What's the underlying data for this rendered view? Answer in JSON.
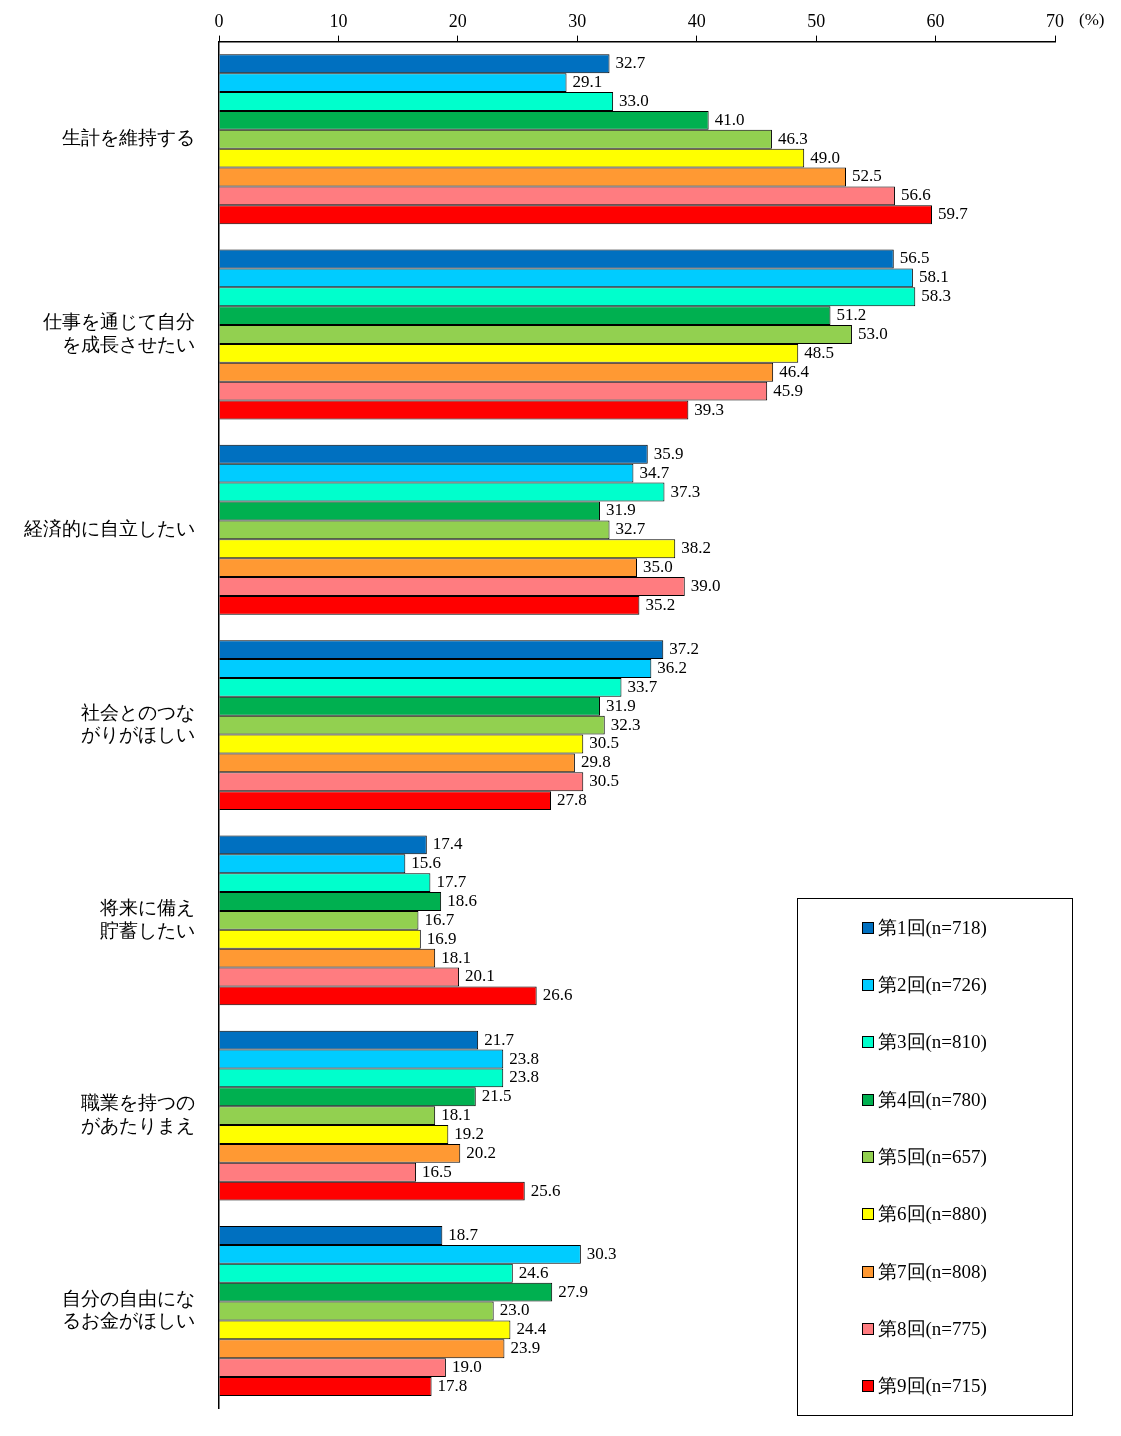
{
  "chart_data": {
    "type": "bar",
    "orientation": "horizontal",
    "xlabel": "(%)",
    "categories": [
      "生計を維持する",
      "仕事を通じて自分を成長させたい",
      "経済的に自立したい",
      "社会とのつながりがほしい",
      "将来に備え貯蓄したい",
      "職業を持つのがあたりまえ",
      "自分の自由になるお金がほしい"
    ],
    "series": [
      {
        "name": "第1回(n=718)",
        "color": "#0070c0",
        "values": [
          32.7,
          56.5,
          35.9,
          37.2,
          17.4,
          21.7,
          18.7
        ],
        "value_labels": [
          "32.7",
          "56.5",
          "35.9",
          "37.2",
          "17.4",
          "21.7",
          "18.7"
        ]
      },
      {
        "name": "第2回(n=726)",
        "color": "#00ccff",
        "values": [
          29.1,
          58.1,
          34.7,
          36.2,
          15.6,
          23.8,
          30.3
        ],
        "value_labels": [
          "29.1",
          "58.1",
          "34.7",
          "36.2",
          "15.6",
          "23.8",
          "30.3"
        ]
      },
      {
        "name": "第3回(n=810)",
        "color": "#00ffcc",
        "values": [
          33.0,
          58.3,
          37.3,
          33.7,
          17.7,
          23.8,
          24.6
        ],
        "value_labels": [
          "33.0",
          "58.3",
          "37.3",
          "33.7",
          "17.7",
          "23.8",
          "24.6"
        ]
      },
      {
        "name": "第4回(n=780)",
        "color": "#00b050",
        "values": [
          41.0,
          51.2,
          31.9,
          31.9,
          18.6,
          21.5,
          27.9
        ],
        "value_labels": [
          "41.0",
          "51.2",
          "31.9",
          "31.9",
          "18.6",
          "21.5",
          "27.9"
        ]
      },
      {
        "name": "第5回(n=657)",
        "color": "#92d050",
        "values": [
          46.3,
          53.0,
          32.7,
          32.3,
          16.7,
          18.1,
          23.0
        ],
        "value_labels": [
          "46.3",
          "53.0",
          "32.7",
          "32.3",
          "16.7",
          "18.1",
          "23.0"
        ]
      },
      {
        "name": "第6回(n=880)",
        "color": "#ffff00",
        "values": [
          49.0,
          48.5,
          38.2,
          30.5,
          16.9,
          19.2,
          24.4
        ],
        "value_labels": [
          "49.0",
          "48.5",
          "38.2",
          "30.5",
          "16.9",
          "19.2",
          "24.4"
        ]
      },
      {
        "name": "第7回(n=808)",
        "color": "#ff9933",
        "values": [
          52.5,
          46.4,
          35.0,
          29.8,
          18.1,
          20.2,
          23.9
        ],
        "value_labels": [
          "52.5",
          "46.4",
          "35.0",
          "29.8",
          "18.1",
          "20.2",
          "23.9"
        ]
      },
      {
        "name": "第8回(n=775)",
        "color": "#ff7c80",
        "values": [
          56.6,
          45.9,
          39.0,
          30.5,
          20.1,
          16.5,
          19.0
        ],
        "value_labels": [
          "56.6",
          "45.9",
          "39.0",
          "30.5",
          "20.1",
          "16.5",
          "19.0"
        ]
      },
      {
        "name": "第9回(n=715)",
        "color": "#ff0000",
        "values": [
          59.7,
          39.3,
          35.2,
          27.8,
          26.6,
          25.6,
          17.8
        ],
        "value_labels": [
          "59.7",
          "39.3",
          "35.2",
          "27.8",
          "26.6",
          "25.6",
          "17.8"
        ]
      }
    ],
    "xlim": [
      0,
      70
    ],
    "xticks": [
      0,
      10,
      20,
      30,
      40,
      50,
      60,
      70
    ],
    "legend": "bottom right"
  }
}
